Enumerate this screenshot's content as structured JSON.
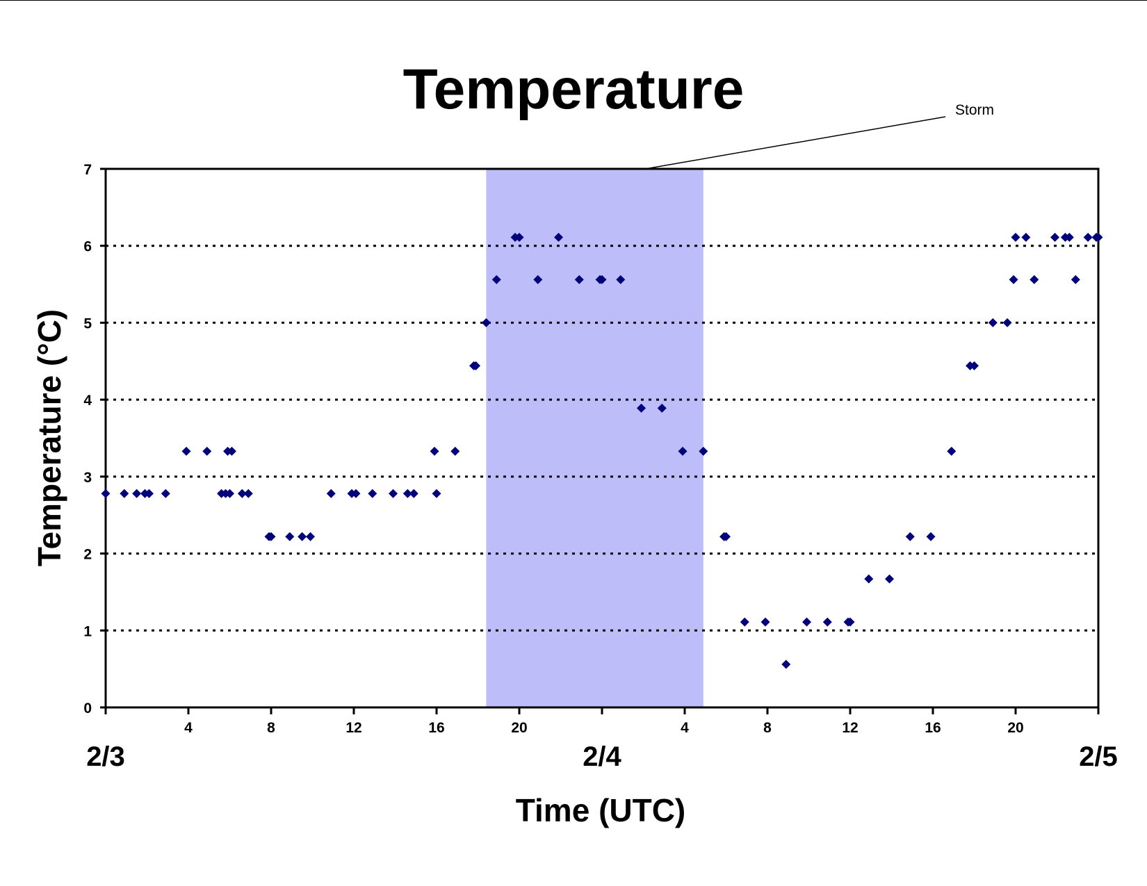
{
  "chart_data": {
    "type": "scatter",
    "title": "Temperature",
    "xlabel": "Time (UTC)",
    "ylabel": "Temperature (°C)",
    "ylim": [
      0,
      7
    ],
    "yticks": [
      "0",
      "1",
      "2",
      "3",
      "4",
      "5",
      "6",
      "7"
    ],
    "xlim_hours": [
      0,
      48
    ],
    "x_hour_ticks": [
      {
        "hour": 4,
        "label": "4"
      },
      {
        "hour": 8,
        "label": "8"
      },
      {
        "hour": 12,
        "label": "12"
      },
      {
        "hour": 16,
        "label": "16"
      },
      {
        "hour": 20,
        "label": "20"
      },
      {
        "hour": 28,
        "label": "4"
      },
      {
        "hour": 32,
        "label": "8"
      },
      {
        "hour": 36,
        "label": "12"
      },
      {
        "hour": 40,
        "label": "16"
      },
      {
        "hour": 44,
        "label": "20"
      }
    ],
    "x_date_labels": [
      {
        "hour": 0,
        "label": "2/3"
      },
      {
        "hour": 24,
        "label": "2/4"
      },
      {
        "hour": 48,
        "label": "2/5"
      }
    ],
    "grid": "horizontal dotted",
    "annotation": {
      "text": "Storm",
      "shaded_hours": [
        18.4,
        28.9
      ]
    },
    "colors": {
      "marker": "#00007a",
      "storm_shade": "#bdbdf9",
      "grid": "#000000"
    },
    "series": [
      {
        "points": [
          [
            0.0,
            2.78
          ],
          [
            0.9,
            2.78
          ],
          [
            1.5,
            2.78
          ],
          [
            1.9,
            2.78
          ],
          [
            2.1,
            2.78
          ],
          [
            2.9,
            2.78
          ],
          [
            3.9,
            3.33
          ],
          [
            4.9,
            3.33
          ],
          [
            5.6,
            2.78
          ],
          [
            5.8,
            2.78
          ],
          [
            5.9,
            3.33
          ],
          [
            6.0,
            2.78
          ],
          [
            6.1,
            3.33
          ],
          [
            6.6,
            2.78
          ],
          [
            6.9,
            2.78
          ],
          [
            7.9,
            2.22
          ],
          [
            8.0,
            2.22
          ],
          [
            8.9,
            2.22
          ],
          [
            9.5,
            2.22
          ],
          [
            9.9,
            2.22
          ],
          [
            10.9,
            2.78
          ],
          [
            11.9,
            2.78
          ],
          [
            12.1,
            2.78
          ],
          [
            12.9,
            2.78
          ],
          [
            13.9,
            2.78
          ],
          [
            14.6,
            2.78
          ],
          [
            14.9,
            2.78
          ],
          [
            15.9,
            3.33
          ],
          [
            16.0,
            2.78
          ],
          [
            16.9,
            3.33
          ],
          [
            17.8,
            4.44
          ],
          [
            17.9,
            4.44
          ],
          [
            18.9,
            5.56
          ],
          [
            18.4,
            5.0
          ],
          [
            19.8,
            6.11
          ],
          [
            20.0,
            6.11
          ],
          [
            20.9,
            5.56
          ],
          [
            21.9,
            6.11
          ],
          [
            22.9,
            5.56
          ],
          [
            23.9,
            5.56
          ],
          [
            24.0,
            5.56
          ],
          [
            24.9,
            5.56
          ],
          [
            25.9,
            3.89
          ],
          [
            26.9,
            3.89
          ],
          [
            27.9,
            3.33
          ],
          [
            28.9,
            3.33
          ],
          [
            29.9,
            2.22
          ],
          [
            30.0,
            2.22
          ],
          [
            30.9,
            1.11
          ],
          [
            31.9,
            1.11
          ],
          [
            32.9,
            0.56
          ],
          [
            33.9,
            1.11
          ],
          [
            34.9,
            1.11
          ],
          [
            35.9,
            1.11
          ],
          [
            36.0,
            1.11
          ],
          [
            36.9,
            1.67
          ],
          [
            37.9,
            1.67
          ],
          [
            38.9,
            2.22
          ],
          [
            39.9,
            2.22
          ],
          [
            40.9,
            3.33
          ],
          [
            41.8,
            4.44
          ],
          [
            42.0,
            4.44
          ],
          [
            42.9,
            5.0
          ],
          [
            43.6,
            5.0
          ],
          [
            43.9,
            5.56
          ],
          [
            44.0,
            6.11
          ],
          [
            44.5,
            6.11
          ],
          [
            44.9,
            5.56
          ],
          [
            45.9,
            6.11
          ],
          [
            46.4,
            6.11
          ],
          [
            46.6,
            6.11
          ],
          [
            46.9,
            5.56
          ],
          [
            47.5,
            6.11
          ],
          [
            47.9,
            6.11
          ],
          [
            48.0,
            6.11
          ]
        ]
      }
    ]
  }
}
